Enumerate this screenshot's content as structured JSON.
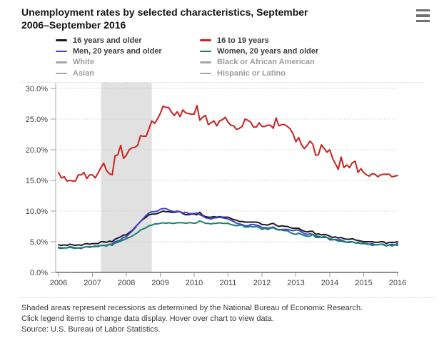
{
  "title": {
    "line1": "Unemployment rates by selected characteristics, September",
    "line2": "2006–September 2016"
  },
  "menu": {
    "tooltip_label": "Chart context menu"
  },
  "legend": {
    "items": [
      {
        "label": "16 years and older",
        "color": "#1a1a1a",
        "active": true
      },
      {
        "label": "16 to 19 years",
        "color": "#cc2020",
        "active": true
      },
      {
        "label": "Men, 20 years and older",
        "color": "#4340d0",
        "active": true
      },
      {
        "label": "Women, 20 years and older",
        "color": "#17806d",
        "active": true
      },
      {
        "label": "White",
        "color": "#a6a6a6",
        "active": false
      },
      {
        "label": "Black or African American",
        "color": "#a6a6a6",
        "active": false
      },
      {
        "label": "Asian",
        "color": "#a6a6a6",
        "active": false
      },
      {
        "label": "Hispanic or Latino",
        "color": "#a6a6a6",
        "active": false
      }
    ]
  },
  "chart_data": {
    "type": "line",
    "title": "Unemployment rates by selected characteristics, September 2006–September 2016",
    "xlabel": "",
    "ylabel": "",
    "ylim": [
      0,
      30
    ],
    "grid": "dotted-horizontal",
    "legend_position": "top",
    "x_start_year": 2006.6667,
    "x_step": "monthly",
    "x_ticks": [
      {
        "label": "2006"
      },
      {
        "label": "2007"
      },
      {
        "label": "2008"
      },
      {
        "label": "2009"
      },
      {
        "label": "2010"
      },
      {
        "label": "2011"
      },
      {
        "label": "2012"
      },
      {
        "label": "2013"
      },
      {
        "label": "2014"
      },
      {
        "label": "2015"
      },
      {
        "label": "2016"
      }
    ],
    "y_ticks": [
      {
        "value": 0,
        "label": "0.0%"
      },
      {
        "value": 5,
        "label": "5.0%"
      },
      {
        "value": 10,
        "label": "10.0%"
      },
      {
        "value": 15,
        "label": "15.0%"
      },
      {
        "value": 20,
        "label": "20.0%"
      },
      {
        "value": 25,
        "label": "25.0%"
      },
      {
        "value": 30,
        "label": "30.0%"
      }
    ],
    "recession_band": {
      "from": 2007.92,
      "to": 2009.42,
      "color": "#e1e1e1"
    },
    "series": [
      {
        "name": "16 years and older",
        "color": "#1a1a1a",
        "values": [
          4.5,
          4.4,
          4.5,
          4.4,
          4.6,
          4.5,
          4.4,
          4.5,
          4.4,
          4.6,
          4.7,
          4.6,
          4.7,
          4.7,
          4.7,
          5.0,
          5.0,
          4.9,
          5.1,
          5.0,
          5.4,
          5.6,
          5.8,
          6.1,
          6.1,
          6.5,
          6.8,
          7.3,
          7.8,
          8.3,
          8.7,
          9.0,
          9.4,
          9.5,
          9.5,
          9.6,
          9.8,
          10.0,
          9.9,
          9.9,
          9.8,
          9.8,
          9.9,
          9.9,
          9.6,
          9.4,
          9.4,
          9.5,
          9.5,
          9.4,
          9.8,
          9.3,
          9.1,
          9.0,
          9.0,
          9.1,
          9.0,
          9.1,
          9.0,
          9.0,
          9.0,
          8.8,
          8.6,
          8.5,
          8.3,
          8.3,
          8.2,
          8.2,
          8.2,
          8.2,
          8.2,
          8.1,
          7.8,
          7.8,
          7.7,
          7.9,
          8.0,
          7.7,
          7.5,
          7.6,
          7.5,
          7.5,
          7.3,
          7.2,
          7.2,
          7.2,
          6.9,
          6.7,
          6.6,
          6.7,
          6.7,
          6.2,
          6.3,
          6.1,
          6.2,
          6.1,
          5.9,
          5.7,
          5.8,
          5.6,
          5.7,
          5.5,
          5.4,
          5.4,
          5.5,
          5.3,
          5.2,
          5.1,
          5.0,
          5.0,
          5.0,
          5.0,
          4.9,
          4.9,
          5.0,
          5.0,
          4.7,
          4.9,
          4.9,
          4.9,
          5.0
        ]
      },
      {
        "name": "16 to 19 years",
        "color": "#cc2020",
        "values": [
          16.3,
          15.4,
          15.6,
          14.9,
          15.0,
          14.9,
          14.9,
          15.9,
          15.9,
          16.3,
          15.3,
          15.9,
          15.9,
          15.4,
          16.2,
          17.1,
          17.8,
          16.6,
          16.1,
          15.9,
          19.0,
          19.2,
          20.7,
          18.6,
          19.1,
          20.0,
          20.3,
          20.4,
          20.7,
          22.3,
          22.2,
          22.2,
          23.4,
          24.7,
          24.3,
          25.0,
          25.9,
          27.1,
          26.9,
          26.9,
          26.1,
          25.6,
          26.2,
          25.4,
          26.5,
          26.0,
          25.9,
          25.8,
          25.8,
          27.2,
          24.8,
          25.3,
          25.6,
          24.1,
          24.4,
          24.7,
          23.9,
          24.7,
          24.9,
          25.3,
          24.5,
          24.0,
          23.9,
          23.3,
          23.5,
          23.8,
          25.0,
          24.8,
          24.5,
          23.7,
          23.7,
          24.4,
          23.8,
          23.8,
          24.0,
          24.0,
          23.5,
          25.2,
          23.9,
          24.1,
          24.1,
          23.8,
          23.4,
          22.6,
          21.3,
          22.0,
          20.8,
          20.2,
          20.7,
          21.4,
          20.9,
          19.1,
          19.2,
          20.8,
          20.2,
          19.6,
          20.0,
          18.6,
          17.7,
          16.8,
          18.8,
          17.1,
          17.5,
          17.1,
          17.9,
          18.1,
          16.3,
          16.9,
          16.3,
          15.9,
          15.7,
          16.1,
          16.0,
          15.6,
          15.9,
          16.0,
          16.0,
          16.0,
          15.6,
          15.7,
          15.8
        ]
      },
      {
        "name": "Men, 20 years and older",
        "color": "#4340d0",
        "values": [
          4.0,
          3.9,
          4.0,
          4.0,
          4.2,
          4.1,
          4.0,
          4.0,
          3.9,
          4.1,
          4.2,
          4.1,
          4.2,
          4.2,
          4.3,
          4.4,
          4.4,
          4.4,
          4.6,
          4.6,
          5.0,
          5.1,
          5.3,
          5.7,
          5.8,
          6.3,
          6.7,
          7.2,
          7.8,
          8.3,
          8.8,
          9.3,
          9.7,
          9.9,
          9.9,
          10.0,
          10.3,
          10.4,
          10.4,
          10.2,
          10.0,
          9.9,
          10.0,
          9.9,
          9.7,
          9.8,
          9.6,
          9.6,
          9.6,
          9.7,
          9.4,
          9.2,
          8.9,
          8.8,
          8.7,
          8.9,
          8.9,
          9.0,
          8.9,
          8.8,
          8.7,
          8.5,
          8.3,
          8.0,
          7.9,
          7.8,
          7.6,
          7.6,
          7.8,
          7.8,
          7.7,
          7.6,
          7.3,
          7.3,
          7.2,
          7.3,
          7.4,
          7.1,
          6.9,
          7.0,
          7.0,
          7.0,
          6.9,
          6.8,
          6.9,
          6.9,
          6.6,
          6.3,
          6.2,
          6.3,
          6.2,
          5.9,
          5.9,
          5.7,
          5.7,
          5.7,
          5.3,
          5.3,
          5.4,
          5.3,
          5.3,
          5.1,
          4.9,
          5.0,
          5.0,
          4.8,
          4.8,
          4.7,
          4.7,
          4.7,
          4.6,
          4.7,
          4.5,
          4.5,
          4.6,
          4.6,
          4.3,
          4.5,
          4.6,
          4.5,
          4.7
        ]
      },
      {
        "name": "Women, 20 years and older",
        "color": "#17806d",
        "values": [
          4.1,
          4.0,
          4.0,
          4.0,
          4.1,
          4.0,
          3.9,
          4.0,
          4.0,
          4.1,
          4.2,
          4.2,
          4.2,
          4.3,
          4.2,
          4.4,
          4.4,
          4.3,
          4.6,
          4.4,
          4.8,
          4.9,
          5.1,
          5.3,
          5.5,
          5.7,
          5.9,
          6.2,
          6.5,
          6.9,
          7.1,
          7.3,
          7.6,
          7.7,
          7.9,
          7.9,
          8.0,
          8.1,
          8.0,
          8.1,
          8.0,
          8.0,
          8.1,
          8.1,
          8.1,
          8.0,
          8.1,
          8.1,
          8.0,
          8.1,
          8.4,
          8.2,
          8.0,
          8.0,
          7.9,
          8.0,
          8.0,
          8.1,
          8.0,
          8.0,
          8.0,
          7.8,
          7.7,
          7.6,
          7.7,
          7.7,
          7.4,
          7.4,
          7.5,
          7.4,
          7.5,
          7.3,
          7.0,
          7.2,
          7.0,
          7.2,
          7.3,
          7.0,
          7.0,
          6.9,
          6.8,
          6.8,
          6.5,
          6.3,
          6.2,
          6.4,
          6.2,
          6.0,
          5.9,
          5.9,
          6.2,
          5.7,
          5.7,
          5.7,
          5.9,
          5.7,
          5.5,
          5.4,
          5.3,
          5.1,
          5.1,
          5.0,
          4.9,
          4.9,
          5.0,
          4.8,
          4.9,
          4.7,
          4.8,
          4.6,
          4.6,
          4.4,
          4.5,
          4.5,
          4.6,
          4.5,
          4.3,
          4.5,
          4.3,
          4.5,
          4.4
        ]
      }
    ],
    "inactive_series_names": [
      "White",
      "Black or African American",
      "Asian",
      "Hispanic or Latino"
    ]
  },
  "footer": {
    "line1": "Shaded areas represent recessions as determined by the National Bureau of Economic Research.",
    "line2": "Click legend items to change data display. Hover over chart to view data.",
    "line3": "Source: U.S. Bureau of Labor Statistics."
  },
  "colors": {
    "gridline": "#d0d0d0",
    "axis_line": "#8f8f8f",
    "y_axis_line": "#ababab",
    "tick": "#999999",
    "axis_text": "#444444",
    "separator": "#cccccc",
    "recession_band": "#e1e1e1"
  }
}
